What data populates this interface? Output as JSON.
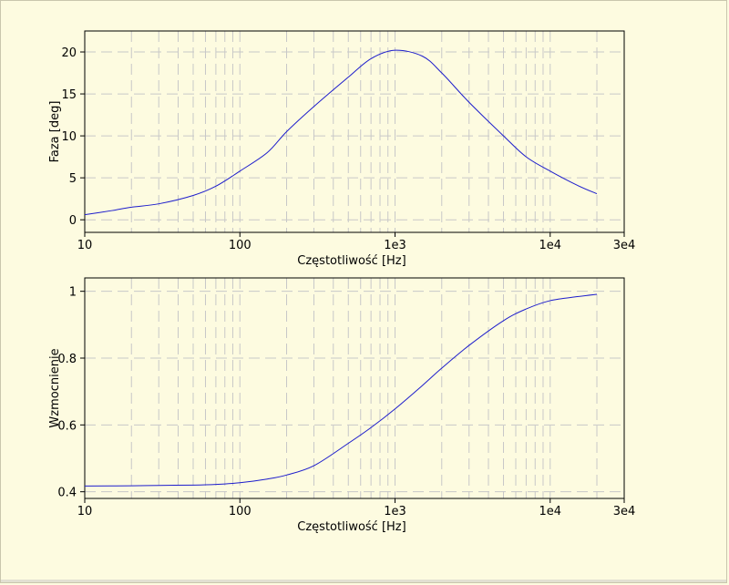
{
  "colors": {
    "background": "#fdfbe0",
    "grid": "#c8c8c8",
    "line": "#1d1dcc",
    "axes": "#000000"
  },
  "chart_data": [
    {
      "type": "line",
      "xscale": "log",
      "xlabel": "Częstotliwość [Hz]",
      "ylabel": "Faza [deg]",
      "xlim": [
        10,
        30000
      ],
      "ylim": [
        -1.5,
        22.5
      ],
      "x_ticks": [
        {
          "value": 10,
          "label": "10"
        },
        {
          "value": 100,
          "label": "100"
        },
        {
          "value": 1000,
          "label": "1e3"
        },
        {
          "value": 10000,
          "label": "1e4"
        },
        {
          "value": 30000,
          "label": "3e4"
        }
      ],
      "y_ticks": [
        {
          "value": 0,
          "label": "0"
        },
        {
          "value": 5,
          "label": "5"
        },
        {
          "value": 10,
          "label": "10"
        },
        {
          "value": 15,
          "label": "15"
        },
        {
          "value": 20,
          "label": "20"
        }
      ],
      "grid": true,
      "series": [
        {
          "x": [
            10,
            15,
            20,
            30,
            50,
            70,
            100,
            150,
            200,
            300,
            500,
            700,
            1000,
            1500,
            2000,
            3000,
            5000,
            7000,
            10000,
            15000,
            20000
          ],
          "y": [
            0.6,
            1.1,
            1.5,
            1.9,
            2.9,
            4.0,
            5.8,
            8.0,
            10.5,
            13.5,
            17.0,
            19.2,
            20.2,
            19.5,
            17.5,
            14.0,
            10.0,
            7.5,
            5.8,
            4.1,
            3.1
          ]
        }
      ]
    },
    {
      "type": "line",
      "xscale": "log",
      "xlabel": "Częstotliwość [Hz]",
      "ylabel": "Wzmocnienie",
      "xlim": [
        10,
        30000
      ],
      "ylim": [
        0.38,
        1.04
      ],
      "x_ticks": [
        {
          "value": 10,
          "label": "10"
        },
        {
          "value": 100,
          "label": "100"
        },
        {
          "value": 1000,
          "label": "1e3"
        },
        {
          "value": 10000,
          "label": "1e4"
        },
        {
          "value": 30000,
          "label": "3e4"
        }
      ],
      "y_ticks": [
        {
          "value": 0.4,
          "label": "0.4"
        },
        {
          "value": 0.6,
          "label": "0.6"
        },
        {
          "value": 0.8,
          "label": "0.8"
        },
        {
          "value": 1,
          "label": "1"
        }
      ],
      "grid": true,
      "series": [
        {
          "x": [
            10,
            20,
            30,
            50,
            70,
            100,
            150,
            200,
            300,
            500,
            700,
            1000,
            1500,
            2000,
            3000,
            5000,
            7000,
            10000,
            15000,
            20000
          ],
          "y": [
            0.417,
            0.418,
            0.419,
            0.42,
            0.422,
            0.427,
            0.438,
            0.45,
            0.478,
            0.545,
            0.592,
            0.648,
            0.718,
            0.77,
            0.838,
            0.912,
            0.947,
            0.972,
            0.984,
            0.991
          ]
        }
      ]
    }
  ]
}
